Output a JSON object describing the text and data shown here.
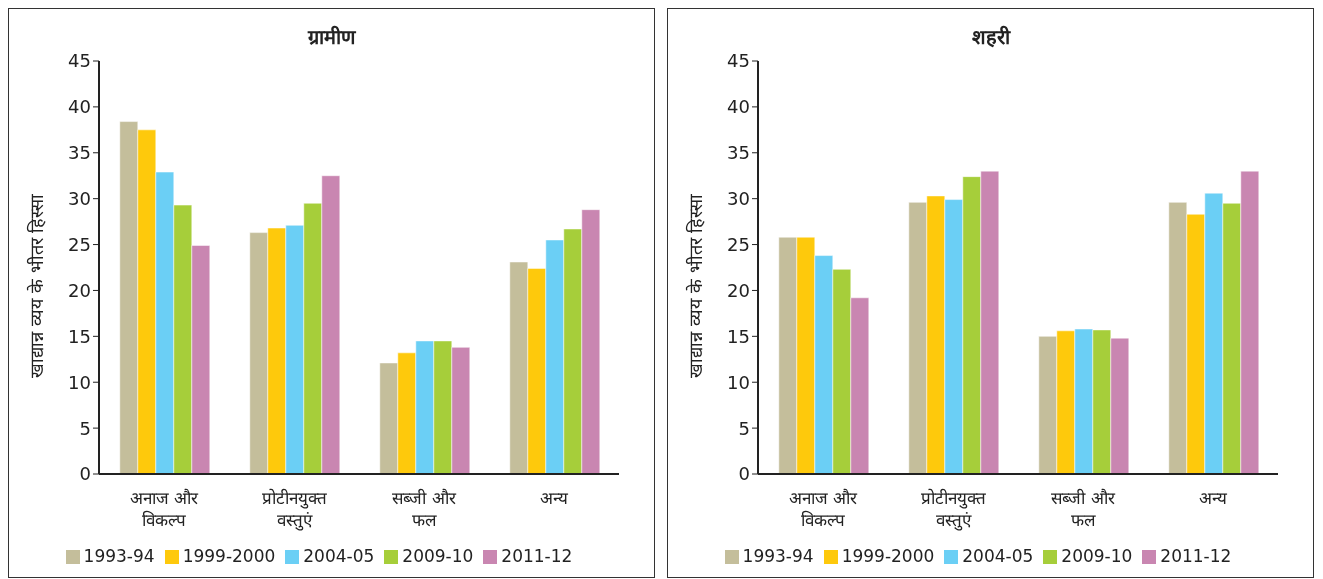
{
  "chart_data": [
    {
      "type": "bar",
      "title": "ग्रामीण",
      "ylabel": "खाद्यान्न व्यय के भीतर हिस्सा",
      "categories": [
        "अनाज और विकल्प",
        "प्रोटीनयुक्त वस्तुएं",
        "सब्जी और फल",
        "अन्य"
      ],
      "ylim": [
        0,
        45
      ],
      "yticks": [
        0,
        5,
        10,
        15,
        20,
        25,
        30,
        35,
        40,
        45
      ],
      "grid": false,
      "legend": "bottom",
      "series": [
        {
          "name": "1993-94",
          "color": "#c4be9b",
          "values": [
            38.4,
            26.3,
            12.1,
            23.1
          ]
        },
        {
          "name": "1999-2000",
          "color": "#fec90c",
          "values": [
            37.5,
            26.8,
            13.2,
            22.4
          ]
        },
        {
          "name": "2004-05",
          "color": "#6bcff5",
          "values": [
            32.9,
            27.1,
            14.5,
            25.5
          ]
        },
        {
          "name": "2009-10",
          "color": "#a6ce3a",
          "values": [
            29.3,
            29.5,
            14.5,
            26.7
          ]
        },
        {
          "name": "2011-12",
          "color": "#c986b1",
          "values": [
            24.9,
            32.5,
            13.8,
            28.8
          ]
        }
      ]
    },
    {
      "type": "bar",
      "title": "शहरी",
      "ylabel": "खाद्यान्न व्यय के भीतर हिस्सा",
      "categories": [
        "अनाज और विकल्प",
        "प्रोटीनयुक्त वस्तुएं",
        "सब्जी और फल",
        "अन्य"
      ],
      "ylim": [
        0,
        45
      ],
      "yticks": [
        0,
        5,
        10,
        15,
        20,
        25,
        30,
        35,
        40,
        45
      ],
      "grid": false,
      "legend": "bottom",
      "series": [
        {
          "name": "1993-94",
          "color": "#c4be9b",
          "values": [
            25.8,
            29.6,
            15.0,
            29.6
          ]
        },
        {
          "name": "1999-2000",
          "color": "#fec90c",
          "values": [
            25.8,
            30.3,
            15.6,
            28.3
          ]
        },
        {
          "name": "2004-05",
          "color": "#6bcff5",
          "values": [
            23.8,
            29.9,
            15.8,
            30.6
          ]
        },
        {
          "name": "2009-10",
          "color": "#a6ce3a",
          "values": [
            22.3,
            32.4,
            15.7,
            29.5
          ]
        },
        {
          "name": "2011-12",
          "color": "#c986b1",
          "values": [
            19.2,
            33.0,
            14.8,
            33.0
          ]
        }
      ]
    }
  ]
}
